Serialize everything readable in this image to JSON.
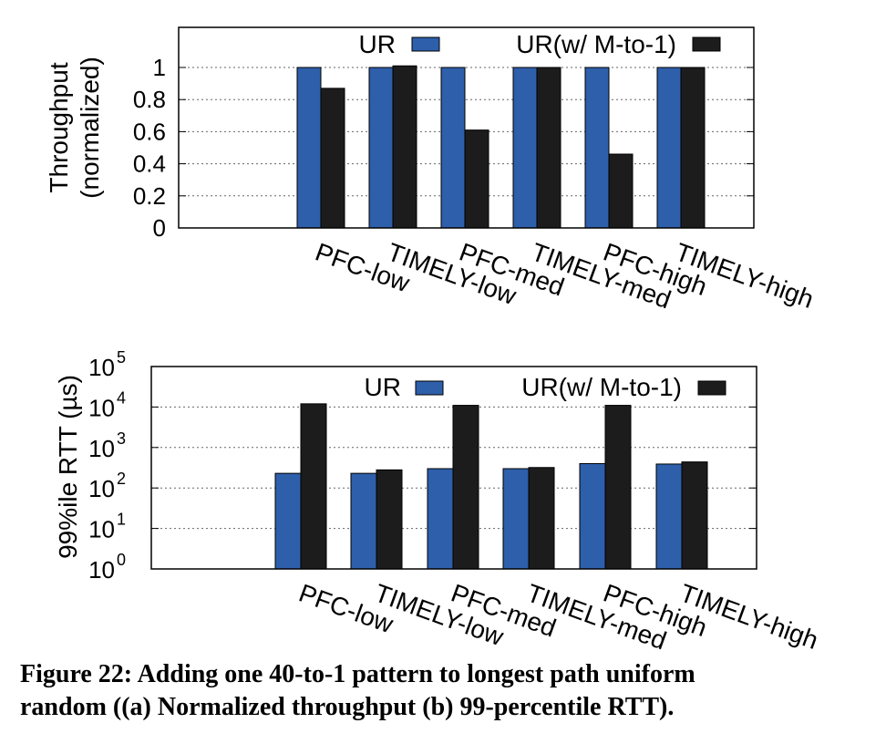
{
  "colors": {
    "ur": "#2e5faa",
    "mto1": "#1c1c1c",
    "grid": "#666666"
  },
  "caption": {
    "line1": "Figure 22: Adding one 40-to-1 pattern to longest path uniform",
    "line2": "random ((a) Normalized throughput (b) 99-percentile RTT)."
  },
  "chart_data": [
    {
      "type": "bar",
      "categories": [
        "PFC-low",
        "TIMELY-low",
        "PFC-med",
        "TIMELY-med",
        "PFC-high",
        "TIMELY-high"
      ],
      "series": [
        {
          "name": "UR",
          "values": [
            1,
            1,
            1,
            1,
            1,
            1
          ]
        },
        {
          "name": "UR(w/ M-to-1)",
          "values": [
            0.87,
            1.01,
            0.61,
            1.0,
            0.46,
            1.0
          ]
        }
      ],
      "ylabel_line1": "Throughput",
      "ylabel_line2": "(normalized)",
      "yticks": [
        "0",
        "0.2",
        "0.4",
        "0.6",
        "0.8",
        "1"
      ],
      "ylim": [
        0,
        1.25
      ],
      "grid": true,
      "legend": "top-right"
    },
    {
      "type": "bar",
      "categories": [
        "PFC-low",
        "TIMELY-low",
        "PFC-med",
        "TIMELY-med",
        "PFC-high",
        "TIMELY-high"
      ],
      "series": [
        {
          "name": "UR",
          "values": [
            230,
            230,
            300,
            300,
            400,
            390
          ]
        },
        {
          "name": "UR(w/ M-to-1)",
          "values": [
            12000,
            280,
            11000,
            320,
            11000,
            440
          ]
        }
      ],
      "ylabel": "99%ile RTT (µs)",
      "yscale": "log",
      "yticks": [
        {
          "base": "10",
          "exp": "0"
        },
        {
          "base": "10",
          "exp": "1"
        },
        {
          "base": "10",
          "exp": "2"
        },
        {
          "base": "10",
          "exp": "3"
        },
        {
          "base": "10",
          "exp": "4"
        },
        {
          "base": "10",
          "exp": "5"
        }
      ],
      "ylim": [
        1,
        100000
      ],
      "grid": true,
      "legend": "top-right"
    }
  ]
}
